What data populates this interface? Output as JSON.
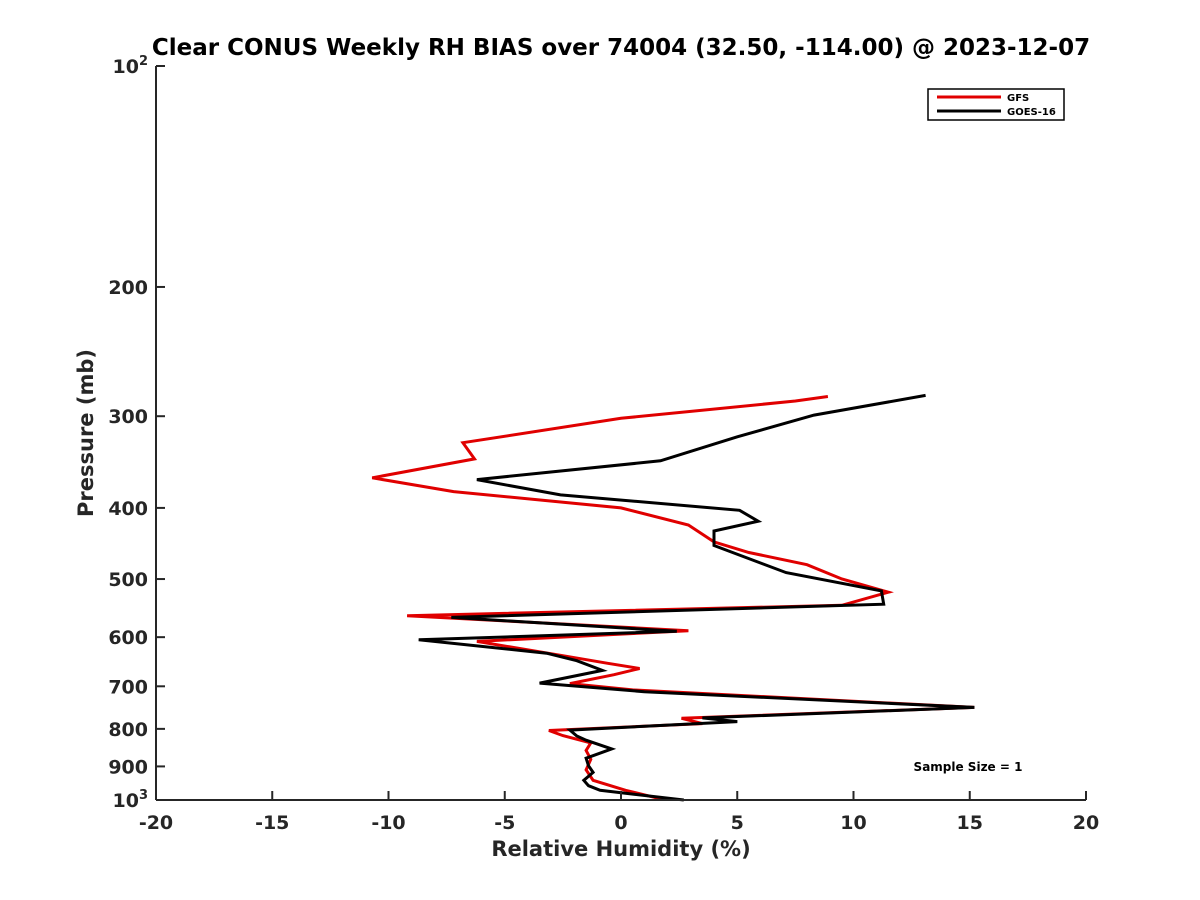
{
  "chart_data": {
    "type": "line",
    "title": "Clear CONUS Weekly RH BIAS over 74004 (32.50, -114.00) @ 2023-12-07",
    "xlabel": "Relative Humidity (%)",
    "ylabel": "Pressure (mb)",
    "xlim": [
      -20,
      20
    ],
    "ylim": [
      100,
      1000
    ],
    "y_scale": "log",
    "y_reversed": true,
    "grid": false,
    "legend_position": "top-right",
    "x_ticks": [
      -20,
      -15,
      -10,
      -5,
      0,
      5,
      10,
      15,
      20
    ],
    "x_tick_labels": [
      "-20",
      "-15",
      "-10",
      "-5",
      "0",
      "5",
      "10",
      "15",
      "20"
    ],
    "y_ticks": [
      {
        "value": 100,
        "base": "10",
        "exp": "2"
      },
      {
        "value": 200,
        "label": "200"
      },
      {
        "value": 300,
        "label": "300"
      },
      {
        "value": 400,
        "label": "400"
      },
      {
        "value": 500,
        "label": "500"
      },
      {
        "value": 600,
        "label": "600"
      },
      {
        "value": 700,
        "label": "700"
      },
      {
        "value": 800,
        "label": "800"
      },
      {
        "value": 900,
        "label": "900"
      },
      {
        "value": 1000,
        "base": "10",
        "exp": "3"
      }
    ],
    "series": [
      {
        "name": "GFS",
        "color": "#e00000",
        "points": [
          [
            8.9,
            282
          ],
          [
            7.5,
            286
          ],
          [
            0,
            302
          ],
          [
            -6.8,
            326
          ],
          [
            -6.3,
            343
          ],
          [
            -10.7,
            364
          ],
          [
            -7.2,
            380
          ],
          [
            0,
            400
          ],
          [
            2.9,
            422
          ],
          [
            4,
            445
          ],
          [
            5.5,
            460
          ],
          [
            8,
            478
          ],
          [
            9.5,
            500
          ],
          [
            11.5,
            521
          ],
          [
            9.5,
            543
          ],
          [
            -9.2,
            561
          ],
          [
            2.9,
            588
          ],
          [
            -6.2,
            608
          ],
          [
            -2.5,
            636
          ],
          [
            -0.6,
            651
          ],
          [
            0.8,
            662
          ],
          [
            -0.3,
            675
          ],
          [
            -2.2,
            694
          ],
          [
            0.5,
            708
          ],
          [
            15.2,
            748
          ],
          [
            2.6,
            774
          ],
          [
            3.5,
            787
          ],
          [
            -3.1,
            804
          ],
          [
            -2.5,
            817
          ],
          [
            -1.3,
            836
          ],
          [
            -1.5,
            856
          ],
          [
            -1.3,
            880
          ],
          [
            -1.5,
            910
          ],
          [
            -1.2,
            940
          ],
          [
            0.2,
            970
          ],
          [
            1.8,
            998
          ]
        ]
      },
      {
        "name": "GOES-16",
        "color": "#000000",
        "points": [
          [
            13.1,
            281
          ],
          [
            8.3,
            299
          ],
          [
            5,
            320
          ],
          [
            1.7,
            345
          ],
          [
            -6.2,
            366
          ],
          [
            -2.6,
            384
          ],
          [
            5.1,
            403
          ],
          [
            5.9,
            417
          ],
          [
            4,
            430
          ],
          [
            4,
            450
          ],
          [
            7.1,
            490
          ],
          [
            11.2,
            519
          ],
          [
            11.3,
            541
          ],
          [
            -7.3,
            564
          ],
          [
            2.4,
            589
          ],
          [
            -8.7,
            605
          ],
          [
            -3.2,
            631
          ],
          [
            -1.9,
            646
          ],
          [
            -0.8,
            666
          ],
          [
            -3.5,
            693
          ],
          [
            1,
            712
          ],
          [
            15.2,
            748
          ],
          [
            3.5,
            773
          ],
          [
            5,
            782
          ],
          [
            -2.2,
            803
          ],
          [
            -1.9,
            818
          ],
          [
            -1.5,
            829
          ],
          [
            -0.4,
            852
          ],
          [
            -1.5,
            877
          ],
          [
            -1.4,
            898
          ],
          [
            -1.2,
            917
          ],
          [
            -1.6,
            940
          ],
          [
            -1.4,
            956
          ],
          [
            -0.9,
            970
          ],
          [
            2.7,
            1000
          ]
        ]
      }
    ],
    "annotation": "Sample Size = 1"
  }
}
